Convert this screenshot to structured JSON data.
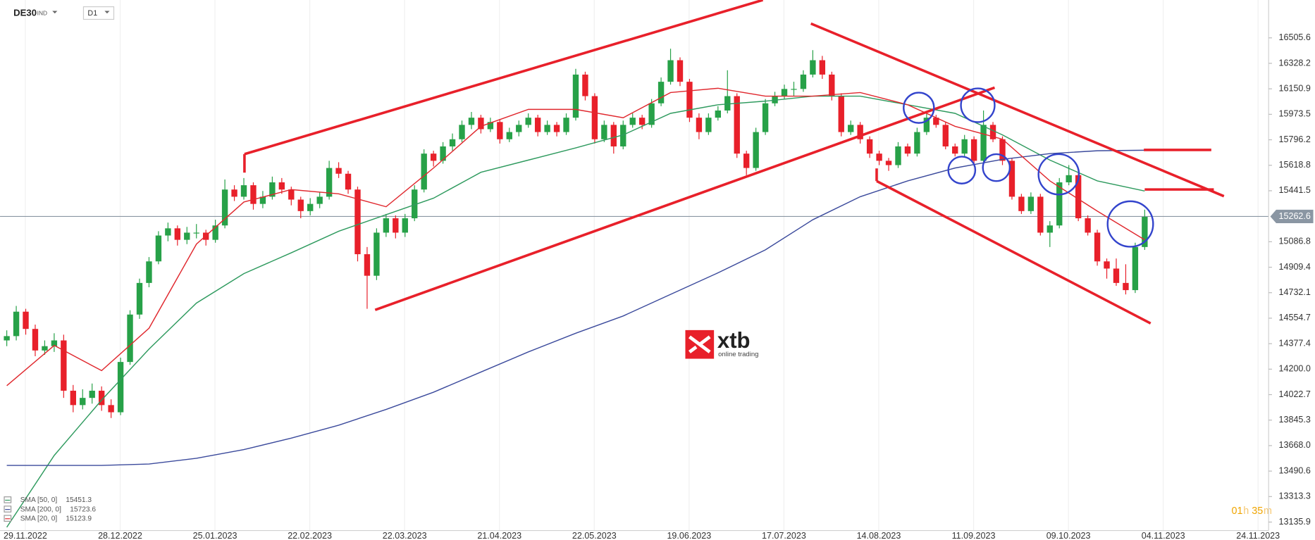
{
  "header": {
    "symbol": "DE30",
    "market": "IND",
    "interval": "D1"
  },
  "logo": {
    "name": "xtb",
    "tagline": "online trading"
  },
  "countdown": [
    "01",
    "h",
    "35",
    "m"
  ],
  "chart_data": {
    "type": "candlestick",
    "up_color": "#27a148",
    "down_color": "#e8202a",
    "ylim": [
      13077,
      16769
    ],
    "yticks": [
      13135.9,
      13313.3,
      13490.6,
      {
        "value": 13668.0,
        "label": "13668.0"
      },
      13845.3,
      14022.7,
      {
        "value": 14200.0,
        "label": "14200.0"
      },
      14377.4,
      14554.7,
      14732.1,
      14909.4,
      15086.8,
      15441.5,
      15618.8,
      15796.2,
      15973.5,
      16150.9,
      16328.2,
      16505.6
    ],
    "x_labels": [
      "29.11.2022",
      "28.12.2022",
      "25.01.2023",
      "22.02.2023",
      "22.03.2023",
      "21.04.2023",
      "22.05.2023",
      "19.06.2023",
      "17.07.2023",
      "14.08.2023",
      "11.09.2023",
      "09.10.2023",
      "04.11.2023",
      "24.11.2023"
    ],
    "last_price": 15262.6,
    "candles": [
      [
        14400,
        14470,
        14360,
        14430
      ],
      [
        14430,
        14640,
        14400,
        14600
      ],
      [
        14600,
        14620,
        14440,
        14480
      ],
      [
        14480,
        14510,
        14290,
        14330
      ],
      [
        14330,
        14400,
        14300,
        14360
      ],
      [
        14360,
        14450,
        14320,
        14400
      ],
      [
        14400,
        14440,
        14000,
        14050
      ],
      [
        14050,
        14090,
        13900,
        13950
      ],
      [
        13950,
        14060,
        13920,
        14000
      ],
      [
        14000,
        14100,
        13960,
        14050
      ],
      [
        14050,
        14080,
        13910,
        13950
      ],
      [
        13950,
        13990,
        13860,
        13900
      ],
      [
        13900,
        14280,
        13880,
        14250
      ],
      [
        14250,
        14610,
        14230,
        14580
      ],
      [
        14580,
        14830,
        14550,
        14800
      ],
      [
        14800,
        14980,
        14770,
        14950
      ],
      [
        14950,
        15160,
        14930,
        15130
      ],
      [
        15130,
        15220,
        15090,
        15180
      ],
      [
        15180,
        15200,
        15060,
        15100
      ],
      [
        15100,
        15190,
        15070,
        15150
      ],
      [
        15150,
        15210,
        15110,
        15150
      ],
      [
        15150,
        15170,
        15060,
        15100
      ],
      [
        15100,
        15240,
        15080,
        15200
      ],
      [
        15200,
        15520,
        15180,
        15450
      ],
      [
        15450,
        15480,
        15370,
        15400
      ],
      [
        15400,
        15530,
        15380,
        15480
      ],
      [
        15480,
        15500,
        15310,
        15350
      ],
      [
        15350,
        15440,
        15320,
        15400
      ],
      [
        15400,
        15540,
        15380,
        15500
      ],
      [
        15500,
        15530,
        15420,
        15450
      ],
      [
        15450,
        15470,
        15340,
        15380
      ],
      [
        15380,
        15400,
        15250,
        15300
      ],
      [
        15300,
        15390,
        15270,
        15350
      ],
      [
        15350,
        15430,
        15320,
        15400
      ],
      [
        15400,
        15650,
        15380,
        15600
      ],
      [
        15600,
        15640,
        15530,
        15560
      ],
      [
        15560,
        15580,
        15420,
        15450
      ],
      [
        15450,
        15470,
        14950,
        15000
      ],
      [
        15000,
        15050,
        14620,
        14850
      ],
      [
        14850,
        15180,
        14820,
        15150
      ],
      [
        15150,
        15280,
        15120,
        15250
      ],
      [
        15250,
        15270,
        15110,
        15150
      ],
      [
        15150,
        15280,
        15120,
        15250
      ],
      [
        15250,
        15480,
        15230,
        15450
      ],
      [
        15450,
        15730,
        15430,
        15700
      ],
      [
        15700,
        15720,
        15610,
        15650
      ],
      [
        15650,
        15780,
        15630,
        15750
      ],
      [
        15750,
        15840,
        15720,
        15800
      ],
      [
        15800,
        15930,
        15780,
        15900
      ],
      [
        15900,
        15990,
        15870,
        15950
      ],
      [
        15950,
        15970,
        15840,
        15870
      ],
      [
        15870,
        15950,
        15850,
        15920
      ],
      [
        15920,
        15940,
        15770,
        15800
      ],
      [
        15800,
        15880,
        15780,
        15850
      ],
      [
        15850,
        15930,
        15820,
        15900
      ],
      [
        15900,
        15980,
        15880,
        15950
      ],
      [
        15950,
        15970,
        15820,
        15850
      ],
      [
        15850,
        15930,
        15830,
        15900
      ],
      [
        15900,
        15920,
        15820,
        15850
      ],
      [
        15850,
        15980,
        15830,
        15950
      ],
      [
        15950,
        16290,
        15930,
        16250
      ],
      [
        16250,
        16270,
        16070,
        16100
      ],
      [
        16100,
        16120,
        15770,
        15800
      ],
      [
        15800,
        15930,
        15780,
        15900
      ],
      [
        15900,
        15920,
        15700,
        15750
      ],
      [
        15750,
        15930,
        15730,
        15900
      ],
      [
        15900,
        15980,
        15880,
        15950
      ],
      [
        15950,
        15970,
        15870,
        15900
      ],
      [
        15900,
        16080,
        15880,
        16050
      ],
      [
        16050,
        16230,
        16030,
        16200
      ],
      [
        16200,
        16430,
        16180,
        16350
      ],
      [
        16350,
        16370,
        16170,
        16200
      ],
      [
        16200,
        16220,
        15920,
        15950
      ],
      [
        15950,
        15980,
        15800,
        15850
      ],
      [
        15850,
        15980,
        15830,
        15950
      ],
      [
        15950,
        16030,
        15930,
        16000
      ],
      [
        16000,
        16280,
        15980,
        16100
      ],
      [
        16100,
        16120,
        15670,
        15700
      ],
      [
        15700,
        15720,
        15550,
        15600
      ],
      [
        15600,
        15880,
        15580,
        15850
      ],
      [
        15850,
        16080,
        15830,
        16050
      ],
      [
        16050,
        16130,
        16030,
        16100
      ],
      [
        16100,
        16180,
        16080,
        16150
      ],
      [
        16150,
        16200,
        16100,
        16150
      ],
      [
        16150,
        16280,
        16130,
        16250
      ],
      [
        16250,
        16420,
        16230,
        16350
      ],
      [
        16350,
        16380,
        16220,
        16250
      ],
      [
        16250,
        16270,
        16070,
        16100
      ],
      [
        16100,
        16120,
        15820,
        15850
      ],
      [
        15850,
        15930,
        15830,
        15900
      ],
      [
        15900,
        15920,
        15770,
        15800
      ],
      [
        15800,
        15820,
        15670,
        15700
      ],
      [
        15700,
        15720,
        15620,
        15650
      ],
      [
        15650,
        15670,
        15580,
        15620
      ],
      [
        15620,
        15780,
        15600,
        15750
      ],
      [
        15750,
        15770,
        15680,
        15700
      ],
      [
        15700,
        15880,
        15680,
        15850
      ],
      [
        15850,
        15980,
        15830,
        15950
      ],
      [
        15950,
        15970,
        15880,
        15900
      ],
      [
        15900,
        15920,
        15730,
        15750
      ],
      [
        15750,
        15770,
        15680,
        15700
      ],
      [
        15700,
        15830,
        15680,
        15800
      ],
      [
        15800,
        15820,
        15620,
        15650
      ],
      [
        15650,
        16000,
        15630,
        15900
      ],
      [
        15900,
        15920,
        15780,
        15800
      ],
      [
        15800,
        15820,
        15620,
        15650
      ],
      [
        15650,
        15670,
        15380,
        15400
      ],
      [
        15400,
        15420,
        15280,
        15300
      ],
      [
        15300,
        15430,
        15280,
        15400
      ],
      [
        15400,
        15420,
        15130,
        15150
      ],
      [
        15150,
        15230,
        15050,
        15200
      ],
      [
        15200,
        15530,
        15180,
        15500
      ],
      [
        15500,
        15620,
        15480,
        15550
      ],
      [
        15550,
        15570,
        15230,
        15250
      ],
      [
        15250,
        15270,
        15130,
        15150
      ],
      [
        15150,
        15170,
        14920,
        14950
      ],
      [
        14950,
        14970,
        14830,
        14900
      ],
      [
        14900,
        14970,
        14780,
        14800
      ],
      [
        14800,
        14930,
        14720,
        14750
      ],
      [
        14750,
        15080,
        14730,
        15050
      ],
      [
        15050,
        15310,
        15030,
        15260
      ]
    ],
    "series": [
      {
        "name": "SMA [50, 0]",
        "color": "#2e9a5e",
        "last": 15451.3,
        "values": [
          13100,
          13600,
          13985,
          14340,
          14660,
          14865,
          15010,
          15160,
          15275,
          15390,
          15570,
          15655,
          15740,
          15830,
          15980,
          16040,
          16065,
          16100,
          16100,
          16040,
          15980,
          15830,
          15655,
          15510,
          15440
        ]
      },
      {
        "name": "SMA [200, 0]",
        "color": "#3b4a9c",
        "last": 15723.6,
        "values": [
          13530,
          13530,
          13530,
          13540,
          13580,
          13640,
          13720,
          13810,
          13920,
          14040,
          14180,
          14320,
          14450,
          14570,
          14720,
          14870,
          15030,
          15240,
          15400,
          15510,
          15600,
          15660,
          15700,
          15720,
          15723.6
        ]
      },
      {
        "name": "SMA [20, 0]",
        "color": "#e0282e",
        "last": 15123.9,
        "values": [
          14085,
          14365,
          14190,
          14485,
          15070,
          15363,
          15450,
          15420,
          15330,
          15600,
          15890,
          16008,
          16008,
          15950,
          16125,
          16155,
          16100,
          16100,
          16125,
          16040,
          15890,
          15800,
          15510,
          15300,
          15100
        ]
      }
    ]
  }
}
